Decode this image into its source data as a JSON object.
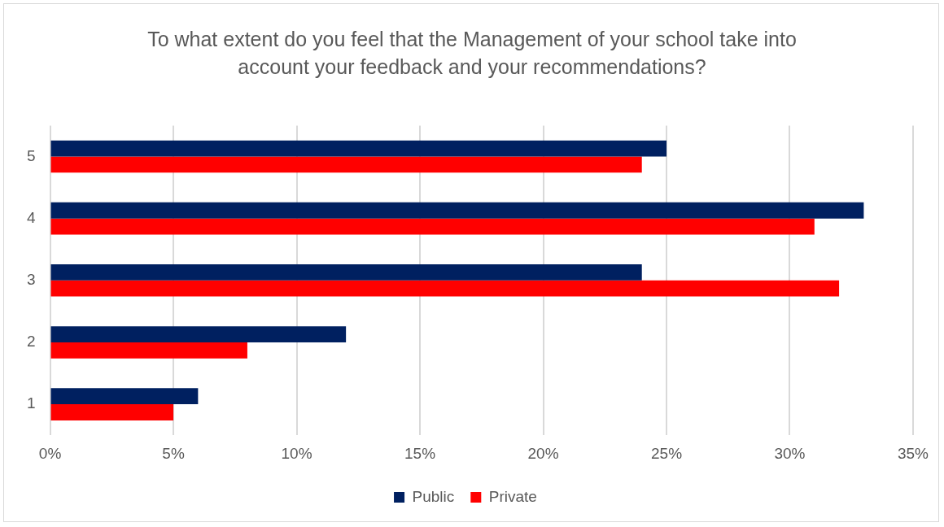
{
  "chart_data": {
    "type": "bar",
    "orientation": "horizontal",
    "title": "To what extent do you feel that the Management of your school take into account your feedback and your recommendations?",
    "categories": [
      "5",
      "4",
      "3",
      "2",
      "1"
    ],
    "series": [
      {
        "name": "Public",
        "color": "#002060",
        "values": [
          25,
          33,
          24,
          12,
          6
        ]
      },
      {
        "name": "Private",
        "color": "#ff0000",
        "values": [
          24,
          31,
          32,
          8,
          5
        ]
      }
    ],
    "xlim": [
      0,
      35
    ],
    "xticks": [
      {
        "value": 0,
        "label": "0%"
      },
      {
        "value": 5,
        "label": "5%"
      },
      {
        "value": 10,
        "label": "10%"
      },
      {
        "value": 15,
        "label": "15%"
      },
      {
        "value": 20,
        "label": "20%"
      },
      {
        "value": 25,
        "label": "25%"
      },
      {
        "value": 30,
        "label": "30%"
      },
      {
        "value": 35,
        "label": "35%"
      }
    ],
    "grid": "x",
    "legend": "bottom"
  }
}
